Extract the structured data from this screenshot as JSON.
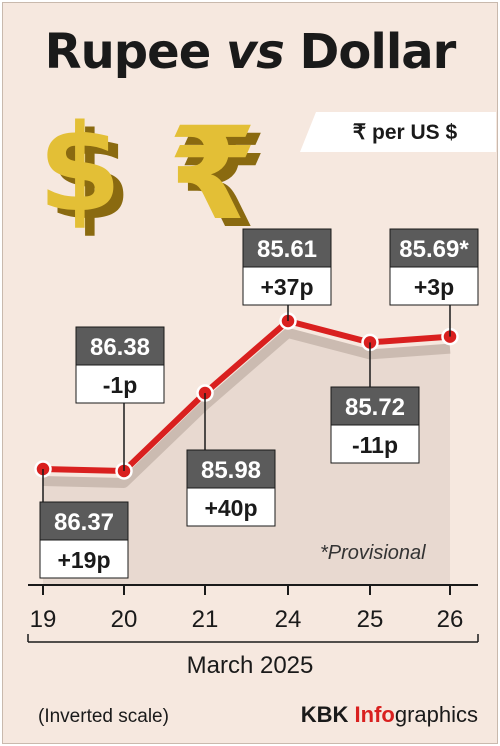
{
  "header": {
    "title_pre": "Rupee ",
    "title_mid": "vs",
    "title_post": " Dollar",
    "unit": "₹ per US $"
  },
  "colors": {
    "line": "#d9201f",
    "value_box": "#5b5b5b",
    "change_box": "#ffffff",
    "area": "#e8d9d0",
    "coin_gold": "#d8b52a"
  },
  "icons": [
    "dollar-sign-3d-icon",
    "rupee-sign-3d-icon"
  ],
  "chart_data": {
    "type": "line",
    "x": [
      "19",
      "20",
      "21",
      "24",
      "25",
      "26"
    ],
    "xlabel": "March 2025",
    "inverted_scale": true,
    "ylim": [
      86.55,
      85.45
    ],
    "series": [
      {
        "values": [
          86.37,
          86.38,
          85.98,
          85.61,
          85.72,
          85.69
        ],
        "value_labels": [
          "86.37",
          "86.38",
          "85.98",
          "85.61",
          "85.72",
          "85.69*"
        ],
        "change_labels": [
          "+19p",
          "-1p",
          "+40p",
          "+37p",
          "-11p",
          "+3p"
        ]
      }
    ],
    "grid": false,
    "legend": "none"
  },
  "footer": {
    "note": "(Inverted scale)",
    "brand_kbk": "KBK ",
    "brand_info": "Info",
    "brand_graphics": "graphics",
    "provisional": "*Provisional"
  }
}
